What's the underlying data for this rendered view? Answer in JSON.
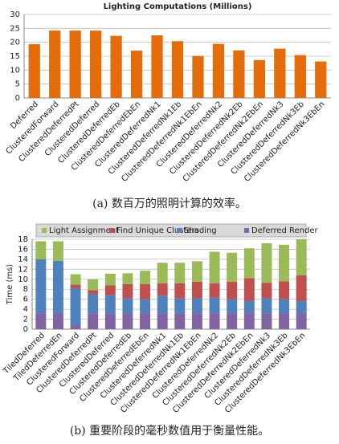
{
  "chart_data": [
    {
      "type": "bar",
      "title": "Lighting Computations (Millions)",
      "caption": "(a)  数百万的照明计算的效率。",
      "categories": [
        "Deferred",
        "ClusteredForward",
        "ClusteredDeferredPt",
        "ClusteredDeferred",
        "ClusteredDeferredEb",
        "ClusteredDeferredEbEn",
        "ClusteredDeferredNk1",
        "ClusteredDeferredNk1Eb",
        "ClusteredDeferredNk1EbEn",
        "ClusteredDeferredNk2",
        "ClusteredDeferredNk2Eb",
        "ClusteredDeferredNk2EbEn",
        "ClusteredDeferredNk3",
        "ClusteredDeferredNk3Eb",
        "ClusteredDeferredNk3EbEn"
      ],
      "values": [
        19.3,
        24.2,
        24.2,
        24.2,
        22.3,
        17,
        22.5,
        20.4,
        15.1,
        19.4,
        17.1,
        13.6,
        17.7,
        15.4,
        13.1
      ],
      "color": "#e46c0a",
      "ylim": [
        0,
        30
      ],
      "yticks": [
        0,
        5,
        10,
        15,
        20,
        25,
        30
      ],
      "grid": true
    },
    {
      "type": "stacked_bar",
      "caption": "(b)  重要阶段的毫秒数值用于衡量性能。",
      "y_label": "Time (ms)",
      "categories": [
        "TiledDeferred",
        "TiledDeferredEn",
        "ClusteredForward",
        "ClusteredDeferredPt",
        "ClusteredDeferred",
        "ClusteredDeferredEb",
        "ClusteredDeferredEbEn",
        "ClusteredDeferredNk1",
        "ClusteredDeferredNk1Eb",
        "ClusteredDeferredNk1EbEn",
        "ClusteredDeferredNk2",
        "ClusteredDeferredNk2Eb",
        "ClusteredDeferredNk2EbEn",
        "ClusteredDeferredNk3",
        "ClusteredDeferredNk3Eb",
        "ClusteredDeferredNk3EbEn"
      ],
      "series": [
        {
          "name": "Light Assignment",
          "color": "#9bbb59",
          "values": [
            3.6,
            3.9,
            2.1,
            2.2,
            2.3,
            2.2,
            2.7,
            4.1,
            4.1,
            4.1,
            6.3,
            5.8,
            6.0,
            7.9,
            7.3,
            7.2
          ]
        },
        {
          "name": "Find Unique Clusters",
          "color": "#c0504d",
          "values": [
            0,
            0,
            0.7,
            0.8,
            2.0,
            2.8,
            3.0,
            2.5,
            3.0,
            3.3,
            2.9,
            3.5,
            4.5,
            3.1,
            3.6,
            5.1
          ]
        },
        {
          "name": "Shading",
          "color": "#4f81bd",
          "values": [
            10.8,
            10.5,
            7.4,
            3.8,
            3.6,
            3.0,
            2.8,
            3.5,
            3.0,
            3.0,
            3.1,
            2.8,
            2.5,
            3.0,
            2.8,
            2.5
          ]
        },
        {
          "name": "Deferred Render",
          "color": "#8064a2",
          "values": [
            3.2,
            3.2,
            0.8,
            3.2,
            3.2,
            3.2,
            3.2,
            3.2,
            3.2,
            3.2,
            3.2,
            3.2,
            3.2,
            3.2,
            3.2,
            3.2
          ]
        }
      ],
      "ylim": [
        0,
        18
      ],
      "yticks": [
        0,
        2,
        4,
        6,
        8,
        10,
        12,
        14,
        16,
        18
      ],
      "grid": true
    }
  ]
}
